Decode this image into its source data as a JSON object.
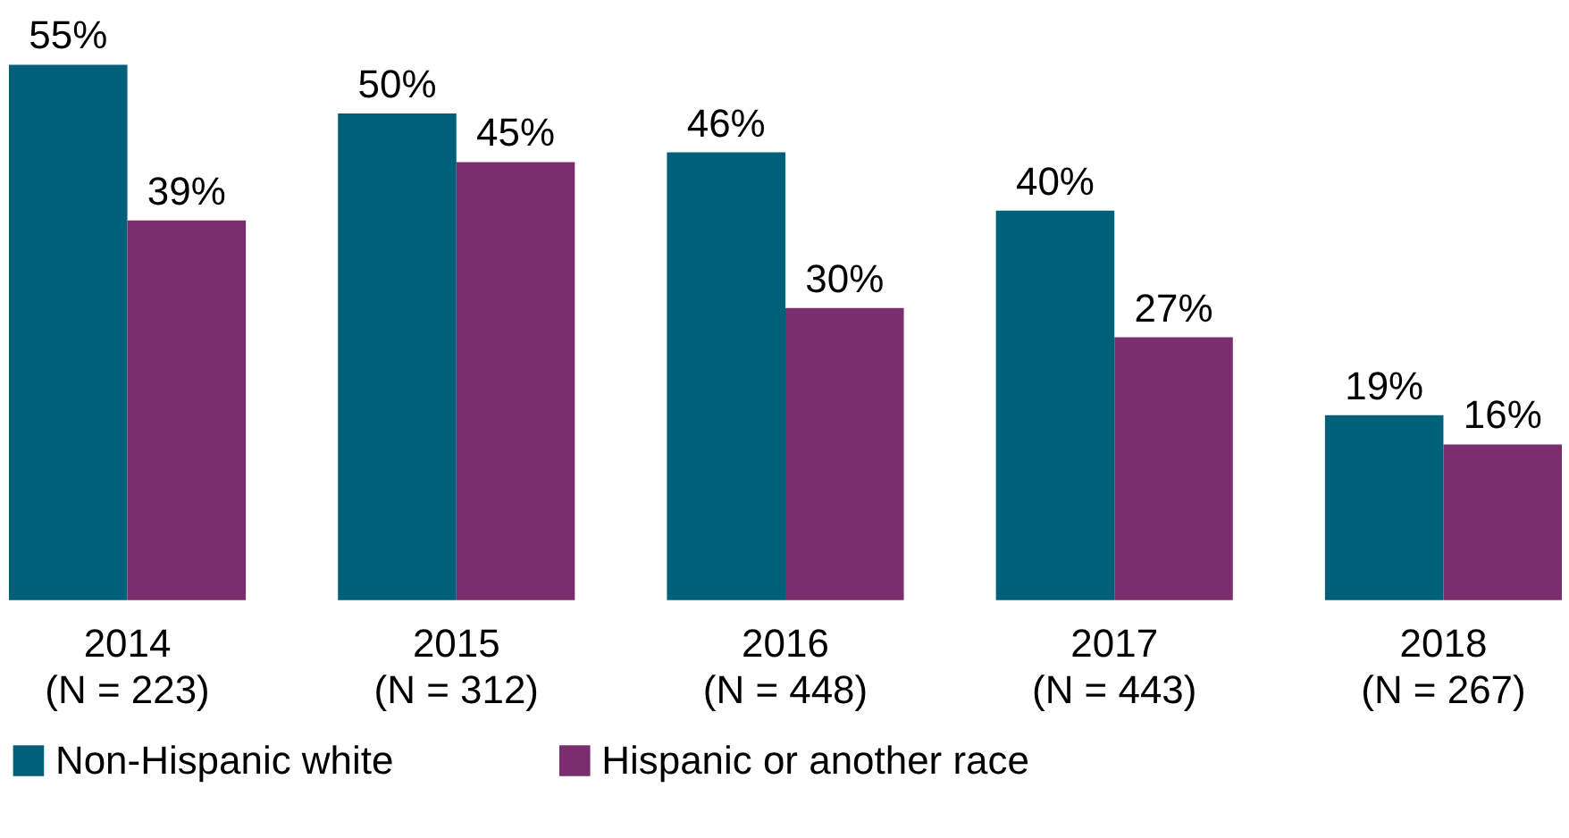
{
  "chart_data": {
    "type": "bar",
    "categories": [
      "2014\n(N = 223)",
      "2015\n(N = 312)",
      "2016\n(N = 448)",
      "2017\n(N = 443)",
      "2018\n(N = 267)"
    ],
    "series": [
      {
        "name": "Non-Hispanic white",
        "color": "#00607a",
        "values": [
          55,
          50,
          46,
          40,
          19
        ],
        "value_labels": [
          "55%",
          "50%",
          "46%",
          "40%",
          "19%"
        ]
      },
      {
        "name": "Hispanic or another race",
        "color": "#7b2d6e",
        "values": [
          39,
          45,
          30,
          27,
          16
        ],
        "value_labels": [
          "39%",
          "45%",
          "30%",
          "27%",
          "16%"
        ]
      }
    ],
    "grid": false,
    "legend": "bottom"
  }
}
